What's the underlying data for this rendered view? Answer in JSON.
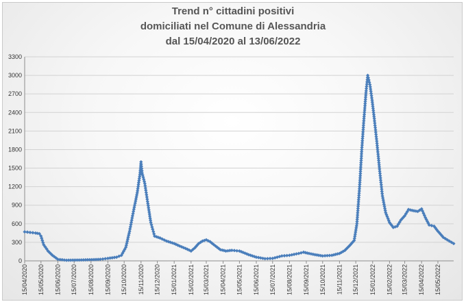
{
  "chart_data": {
    "type": "line",
    "title": [
      "Trend n° cittadini positivi",
      "domiciliati nel Comune di Alessandria",
      "dal 15/04/2020 al 13/06/2022"
    ],
    "xlabel": "",
    "ylabel": "",
    "ylim": [
      0,
      3300
    ],
    "yticks": [
      0,
      300,
      600,
      900,
      1200,
      1500,
      1800,
      2100,
      2400,
      2700,
      3000,
      3300
    ],
    "xlim": [
      "15/04/2020",
      "13/06/2022"
    ],
    "xticks": [
      "15/04/2020",
      "15/05/2020",
      "15/06/2020",
      "15/07/2020",
      "15/08/2020",
      "15/09/2020",
      "15/10/2020",
      "15/11/2020",
      "15/12/2020",
      "15/01/2021",
      "15/02/2021",
      "15/03/2021",
      "15/04/2021",
      "15/05/2021",
      "15/06/2021",
      "15/07/2021",
      "15/08/2021",
      "15/09/2021",
      "15/10/2021",
      "15/11/2021",
      "15/12/2021",
      "15/01/2022",
      "15/02/2022",
      "15/03/2022",
      "15/04/2022",
      "15/05/2022"
    ],
    "grid": true,
    "legend": "none",
    "series_color": "#4f81bd",
    "points": [
      [
        "15/04/2020",
        470
      ],
      [
        "25/04/2020",
        460
      ],
      [
        "05/05/2020",
        450
      ],
      [
        "12/05/2020",
        440
      ],
      [
        "15/05/2020",
        400
      ],
      [
        "20/05/2020",
        260
      ],
      [
        "28/05/2020",
        160
      ],
      [
        "05/06/2020",
        90
      ],
      [
        "15/06/2020",
        25
      ],
      [
        "01/07/2020",
        10
      ],
      [
        "01/08/2020",
        15
      ],
      [
        "01/09/2020",
        25
      ],
      [
        "15/09/2020",
        40
      ],
      [
        "01/10/2020",
        60
      ],
      [
        "10/10/2020",
        90
      ],
      [
        "18/10/2020",
        220
      ],
      [
        "25/10/2020",
        480
      ],
      [
        "01/11/2020",
        800
      ],
      [
        "08/11/2020",
        1100
      ],
      [
        "13/11/2020",
        1400
      ],
      [
        "15/11/2020",
        1600
      ],
      [
        "17/11/2020",
        1420
      ],
      [
        "22/11/2020",
        1250
      ],
      [
        "27/11/2020",
        960
      ],
      [
        "03/12/2020",
        620
      ],
      [
        "10/12/2020",
        400
      ],
      [
        "20/12/2020",
        370
      ],
      [
        "01/01/2021",
        320
      ],
      [
        "15/01/2021",
        280
      ],
      [
        "25/01/2021",
        240
      ],
      [
        "05/02/2021",
        200
      ],
      [
        "15/02/2021",
        160
      ],
      [
        "22/02/2021",
        210
      ],
      [
        "01/03/2021",
        280
      ],
      [
        "08/03/2021",
        320
      ],
      [
        "15/03/2021",
        340
      ],
      [
        "22/03/2021",
        310
      ],
      [
        "01/04/2021",
        240
      ],
      [
        "10/04/2021",
        180
      ],
      [
        "20/04/2021",
        160
      ],
      [
        "01/05/2021",
        170
      ],
      [
        "15/05/2021",
        160
      ],
      [
        "01/06/2021",
        100
      ],
      [
        "15/06/2021",
        60
      ],
      [
        "01/07/2021",
        35
      ],
      [
        "15/07/2021",
        40
      ],
      [
        "01/08/2021",
        80
      ],
      [
        "15/08/2021",
        90
      ],
      [
        "01/09/2021",
        120
      ],
      [
        "10/09/2021",
        140
      ],
      [
        "20/09/2021",
        120
      ],
      [
        "01/10/2021",
        100
      ],
      [
        "15/10/2021",
        80
      ],
      [
        "01/11/2021",
        90
      ],
      [
        "15/11/2021",
        120
      ],
      [
        "25/11/2021",
        170
      ],
      [
        "05/12/2021",
        260
      ],
      [
        "12/12/2021",
        330
      ],
      [
        "17/12/2021",
        600
      ],
      [
        "22/12/2021",
        1200
      ],
      [
        "26/12/2021",
        1800
      ],
      [
        "30/12/2021",
        2300
      ],
      [
        "03/01/2022",
        2750
      ],
      [
        "06/01/2022",
        3000
      ],
      [
        "10/01/2022",
        2850
      ],
      [
        "14/01/2022",
        2600
      ],
      [
        "18/01/2022",
        2300
      ],
      [
        "23/01/2022",
        1900
      ],
      [
        "28/01/2022",
        1450
      ],
      [
        "02/02/2022",
        1050
      ],
      [
        "08/02/2022",
        780
      ],
      [
        "15/02/2022",
        620
      ],
      [
        "22/02/2022",
        540
      ],
      [
        "01/03/2022",
        560
      ],
      [
        "08/03/2022",
        660
      ],
      [
        "15/03/2022",
        730
      ],
      [
        "22/03/2022",
        830
      ],
      [
        "01/04/2022",
        810
      ],
      [
        "08/04/2022",
        800
      ],
      [
        "15/04/2022",
        840
      ],
      [
        "22/04/2022",
        700
      ],
      [
        "29/04/2022",
        580
      ],
      [
        "08/05/2022",
        560
      ],
      [
        "15/05/2022",
        480
      ],
      [
        "25/05/2022",
        380
      ],
      [
        "05/06/2022",
        320
      ],
      [
        "13/06/2022",
        280
      ]
    ]
  }
}
